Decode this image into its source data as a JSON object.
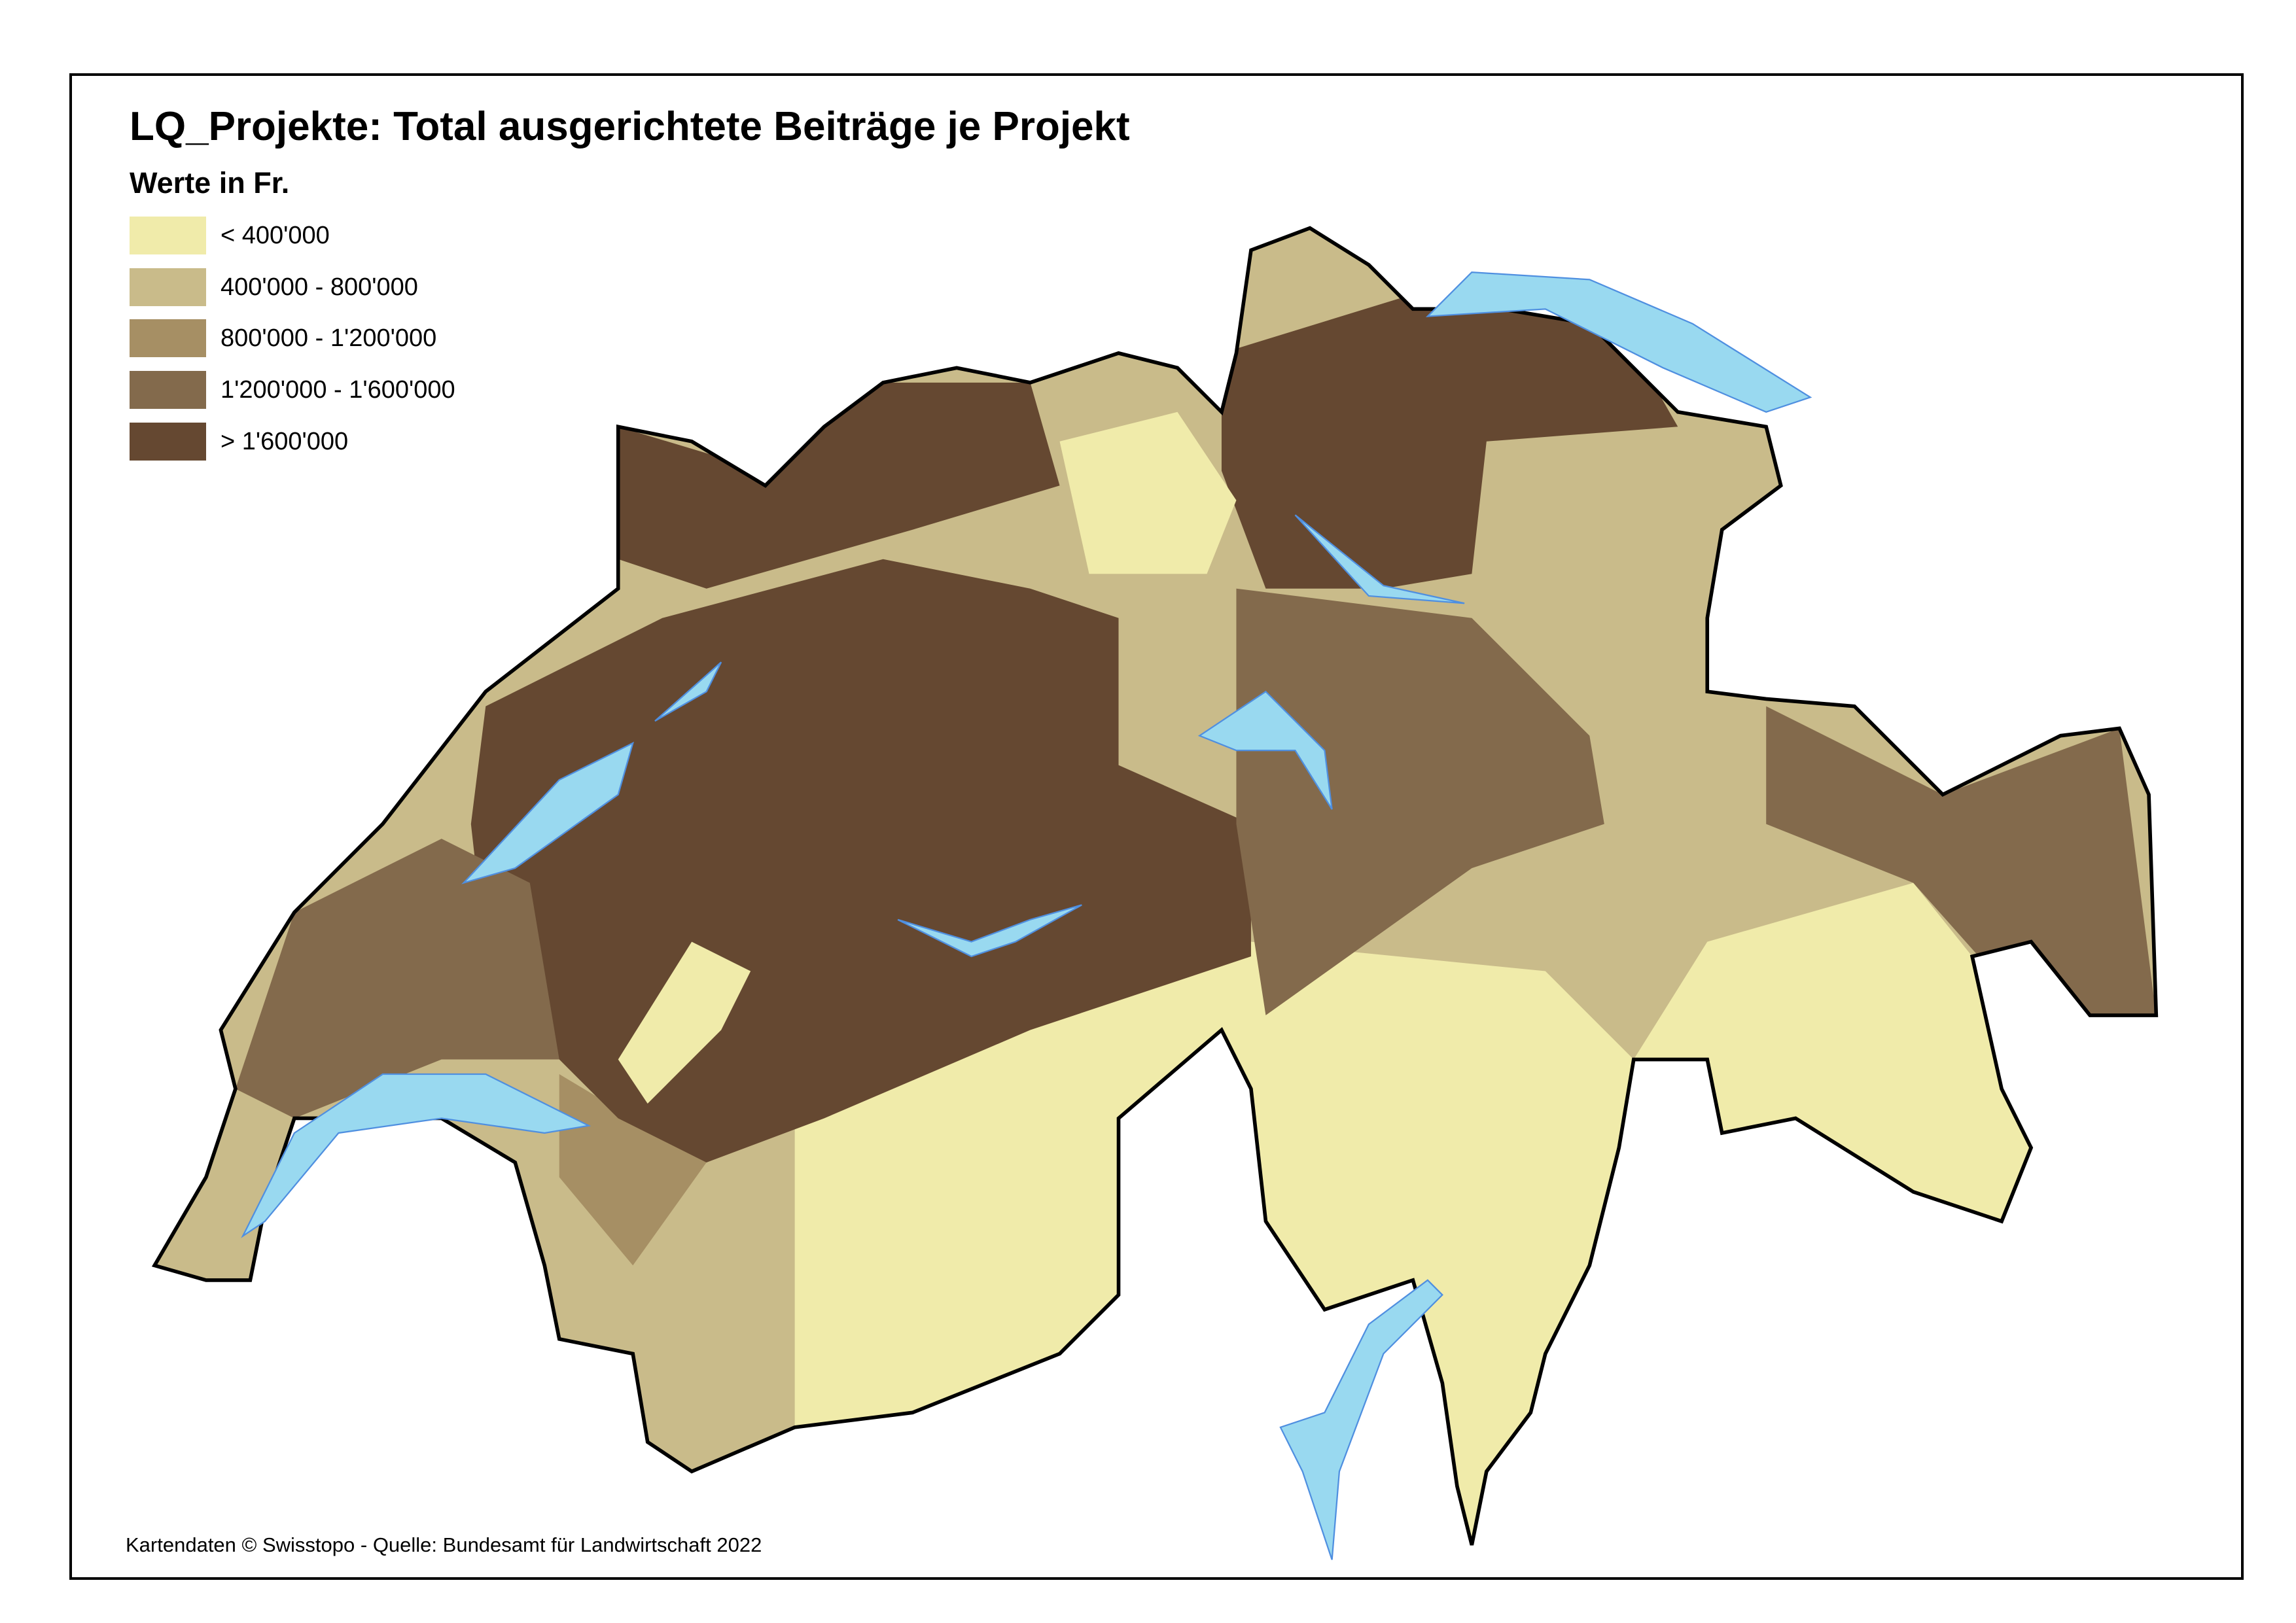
{
  "title": "LQ_Projekte: Total ausgerichtete Beiträge je Projekt",
  "legend": {
    "title": "Werte in Fr.",
    "items": [
      {
        "label": "< 400'000",
        "color": "#f0ebaa"
      },
      {
        "label": "400'000 - 800'000",
        "color": "#c9bb8a"
      },
      {
        "label": "800'000 - 1'200'000",
        "color": "#a68f64"
      },
      {
        "label": "1'200'000 - 1'600'000",
        "color": "#836a4c"
      },
      {
        "label": "> 1'600'000",
        "color": "#654831"
      }
    ]
  },
  "colors": {
    "water": "#99d9f0",
    "water_outline": "#4f8fe0",
    "border": "#000000",
    "inner_border": "#ffffff"
  },
  "footer": "Kartendaten © Swisstopo  - Quelle: Bundesamt für Landwirtschaft 2022"
}
